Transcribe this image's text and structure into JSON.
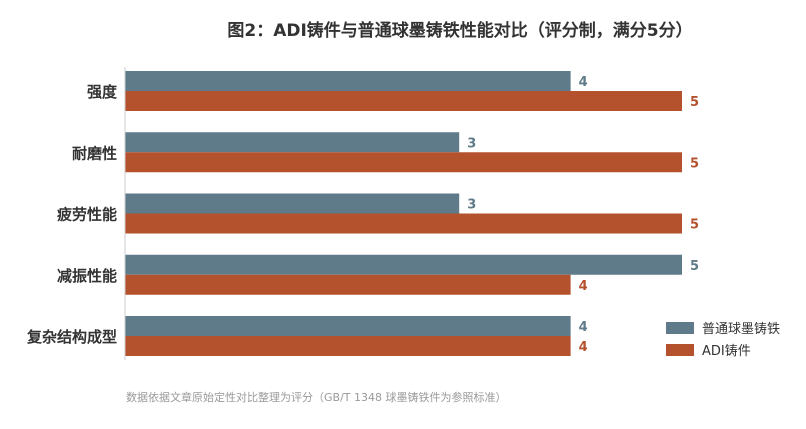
{
  "chart_data": {
    "type": "bar",
    "orientation": "horizontal",
    "title": "图2：ADI铸件与普通球墨铸铁性能对比（评分制，满分5分）",
    "categories": [
      "强度",
      "耐磨性",
      "疲劳性能",
      "减振性能",
      "复杂结构成型"
    ],
    "series": [
      {
        "name": "普通球墨铸铁",
        "values": [
          4,
          3,
          3,
          5,
          4
        ],
        "color": "#5f7a88"
      },
      {
        "name": "ADI铸件",
        "values": [
          5,
          5,
          5,
          4,
          4
        ],
        "color": "#b5522e"
      }
    ],
    "xlim": [
      0,
      5
    ],
    "grid": false,
    "legend": "right",
    "footnote": "数据依据文章原始定性对比整理为评分（GB/T 1348 球墨铸铁件为参照标准）"
  }
}
